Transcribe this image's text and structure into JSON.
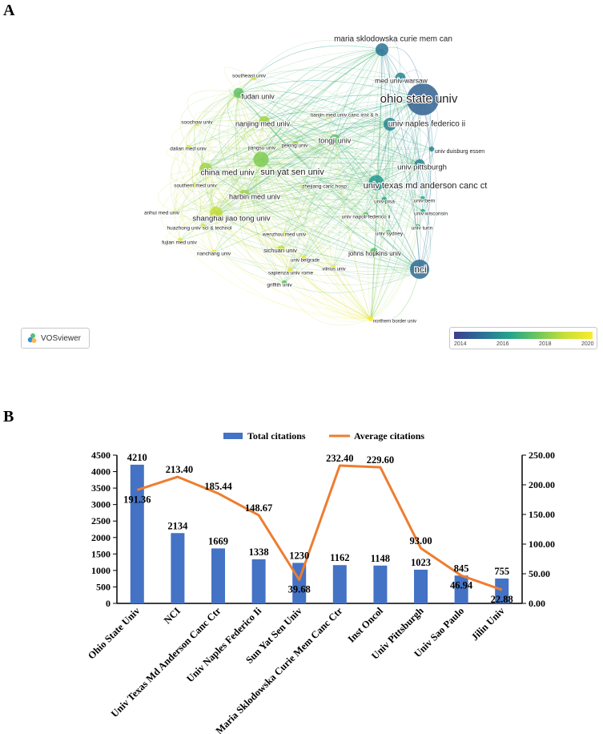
{
  "panel_a": {
    "label": "A",
    "logo_text": "VOSviewer",
    "colorbar_ticks": [
      "2014",
      "2016",
      "2018",
      "2020"
    ],
    "colorbar_colors": [
      "#3b3f8c",
      "#2d6f95",
      "#24a48c",
      "#6cc65e",
      "#c9df3a",
      "#f7ec2c"
    ],
    "nodes": [
      {
        "id": "maria-sklodowska-curie-mem-can",
        "label": "maria sklodowska curie mem can",
        "year": 2015.0,
        "weight": 4
      },
      {
        "id": "med-univ-warsaw",
        "label": "med univ warsaw",
        "year": 2015.5,
        "weight": 3
      },
      {
        "id": "ohio-state-univ",
        "label": "ohio state univ",
        "year": 2014.5,
        "weight": 10
      },
      {
        "id": "univ-naples-federico-ii",
        "label": "univ naples federico ii",
        "year": 2015.5,
        "weight": 4
      },
      {
        "id": "southeast-univ",
        "label": "southeast univ",
        "year": 2019.5,
        "weight": 1
      },
      {
        "id": "fudan-univ",
        "label": "fudan univ",
        "year": 2017.5,
        "weight": 3
      },
      {
        "id": "tianjin-med-univ-canc-inst",
        "label": "tianjin med univ canc inst & h",
        "year": 2019.5,
        "weight": 1
      },
      {
        "id": "soochow-univ",
        "label": "soochow univ",
        "year": 2019.5,
        "weight": 1
      },
      {
        "id": "nanjing-med-univ",
        "label": "nanjing med univ",
        "year": 2018.5,
        "weight": 3
      },
      {
        "id": "peking-univ",
        "label": "peking univ",
        "year": 2018.5,
        "weight": 1
      },
      {
        "id": "jiangsu-univ",
        "label": "jiangsu univ",
        "year": 2019.0,
        "weight": 1
      },
      {
        "id": "tongji-univ",
        "label": "tongji univ",
        "year": 2017.5,
        "weight": 3
      },
      {
        "id": "univ-duisburg-essen",
        "label": "univ duisburg essen",
        "year": 2015.5,
        "weight": 1
      },
      {
        "id": "dalian-med-univ",
        "label": "dalian med univ",
        "year": 2019.5,
        "weight": 1
      },
      {
        "id": "univ-pittsburgh",
        "label": "univ pittsburgh",
        "year": 2015.5,
        "weight": 3
      },
      {
        "id": "china-med-univ",
        "label": "china med univ",
        "year": 2018.5,
        "weight": 4
      },
      {
        "id": "sun-yat-sen-univ",
        "label": "sun yat sen univ",
        "year": 2018.0,
        "weight": 5
      },
      {
        "id": "univ-texas-md-anderson-canc-ct",
        "label": "univ texas md anderson canc ct",
        "year": 2016.0,
        "weight": 5
      },
      {
        "id": "southern-med-univ",
        "label": "southern med univ",
        "year": 2019.5,
        "weight": 1
      },
      {
        "id": "zhejiang-canc-hosp",
        "label": "zhejiang canc hosp",
        "year": 2019.0,
        "weight": 1
      },
      {
        "id": "harbin-med-univ",
        "label": "harbin med univ",
        "year": 2018.5,
        "weight": 3
      },
      {
        "id": "univ-pisa",
        "label": "univ pisa",
        "year": 2016.5,
        "weight": 1
      },
      {
        "id": "univ-bern",
        "label": "univ bern",
        "year": 2016.5,
        "weight": 1
      },
      {
        "id": "anhui-med-univ",
        "label": "anhui med univ",
        "year": 2020.0,
        "weight": 1
      },
      {
        "id": "shanghai-jiao-tong-univ",
        "label": "shanghai jiao tong univ",
        "year": 2019.0,
        "weight": 4
      },
      {
        "id": "univ-napoli-federico-ii",
        "label": "univ napoli federico ii",
        "year": 2017.5,
        "weight": 1
      },
      {
        "id": "univ-wisconsin",
        "label": "univ wisconsin",
        "year": 2016.5,
        "weight": 1
      },
      {
        "id": "huazhong-univ-sci-technol",
        "label": "huazhong univ sci & technol",
        "year": 2019.5,
        "weight": 1
      },
      {
        "id": "univ-turin",
        "label": "univ turin",
        "year": 2017.0,
        "weight": 1
      },
      {
        "id": "univ-sydney",
        "label": "univ sydney",
        "year": 2017.5,
        "weight": 1
      },
      {
        "id": "wenzhou-med-univ",
        "label": "wenzhou med univ",
        "year": 2019.5,
        "weight": 1
      },
      {
        "id": "fujian-med-univ",
        "label": "fujian med univ",
        "year": 2020.0,
        "weight": 1
      },
      {
        "id": "johns-hopkins-univ",
        "label": "johns hopkins univ",
        "year": 2017.5,
        "weight": 2
      },
      {
        "id": "nanchang-univ",
        "label": "nanchang univ",
        "year": 2020.0,
        "weight": 1
      },
      {
        "id": "sichuan-univ",
        "label": "sichuan univ",
        "year": 2019.0,
        "weight": 2
      },
      {
        "id": "nci",
        "label": "nci",
        "year": 2014.8,
        "weight": 7
      },
      {
        "id": "univ-belgrade",
        "label": "univ belgrade",
        "year": 2020.0,
        "weight": 1
      },
      {
        "id": "vilnius-univ",
        "label": "vilnius univ",
        "year": 2020.0,
        "weight": 1
      },
      {
        "id": "sapienza-univ-rome",
        "label": "sapienza univ rome",
        "year": 2020.0,
        "weight": 1
      },
      {
        "id": "griffith-univ",
        "label": "griffith univ",
        "year": 2017.5,
        "weight": 1
      },
      {
        "id": "northern-border-univ",
        "label": "northern border univ",
        "year": 2020.5,
        "weight": 1
      }
    ]
  },
  "panel_b": {
    "label": "B",
    "chart_data": {
      "type": "bar",
      "title": "",
      "categories": [
        "Ohio State Univ",
        "NCI",
        "Univ Texas Md Anderson Canc Ctr",
        "Univ Naples Federico Ii",
        "Sun Yat Sen Univ",
        "Maria Sklodowska Curie Mem Canc Ctr",
        "Inst Oncol",
        "Univ Pittsburgh",
        "Univ Sao Paulo",
        "Jilin Univ"
      ],
      "series": [
        {
          "name": "Total citations",
          "type": "bar",
          "axis": "left",
          "color": "#4472c4",
          "values": [
            4210,
            2134,
            1669,
            1338,
            1230,
            1162,
            1148,
            1023,
            845,
            755
          ],
          "value_labels": [
            "4210",
            "2134",
            "1669",
            "1338",
            "1230",
            "1162",
            "1148",
            "1023",
            "845",
            "755"
          ]
        },
        {
          "name": "Average citations",
          "type": "line",
          "axis": "right",
          "color": "#ed7d31",
          "values": [
            191.36,
            213.4,
            185.44,
            148.67,
            39.68,
            232.4,
            229.6,
            93.0,
            46.94,
            22.88
          ],
          "value_labels": [
            "191.36",
            "213.40",
            "185.44",
            "148.67",
            "39.68",
            "232.40",
            "229.60",
            "93.00",
            "46.94",
            "22.88"
          ]
        }
      ],
      "y_left": {
        "min": 0,
        "max": 4500,
        "ticks": [
          "0",
          "500",
          "1000",
          "1500",
          "2000",
          "2500",
          "3000",
          "3500",
          "4000",
          "4500"
        ]
      },
      "y_right": {
        "min": 0,
        "max": 250,
        "ticks": [
          "0.00",
          "50.00",
          "100.00",
          "150.00",
          "200.00",
          "250.00"
        ]
      },
      "legend_position": "top-center",
      "grid": false
    }
  }
}
